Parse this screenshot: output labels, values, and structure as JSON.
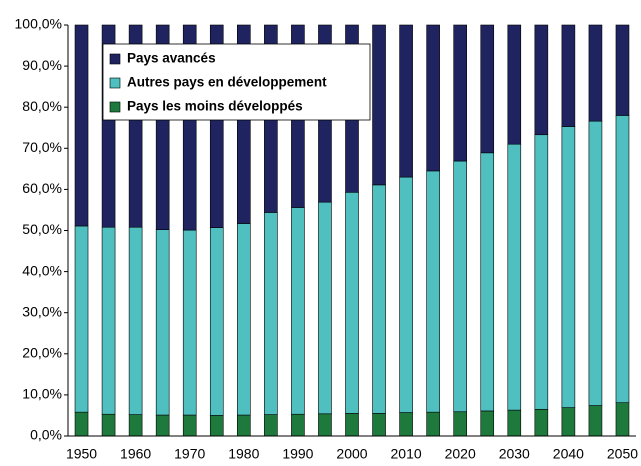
{
  "chart_data": {
    "type": "stacked_bar",
    "categories": [
      "1950",
      null,
      "1960",
      null,
      "1970",
      null,
      "1980",
      null,
      "1990",
      null,
      "2000",
      null,
      "2010",
      null,
      "2020",
      null,
      "2030",
      null,
      "2040",
      null,
      "2050"
    ],
    "series": [
      {
        "name": "Pays avancés",
        "color": "#1f2460",
        "values": [
          48.9,
          49.2,
          49.2,
          49.8,
          49.9,
          49.3,
          48.3,
          45.6,
          44.4,
          43.1,
          40.7,
          38.9,
          37.0,
          35.5,
          33.1,
          31.1,
          29.0,
          26.7,
          24.7,
          23.4,
          22.0
        ]
      },
      {
        "name": "Autres pays en développement",
        "color": "#4fbfbf",
        "values": [
          45.3,
          45.5,
          45.6,
          45.1,
          45.0,
          45.7,
          46.6,
          49.2,
          50.3,
          51.5,
          53.8,
          55.6,
          57.3,
          58.7,
          61.0,
          62.8,
          64.7,
          66.8,
          68.4,
          69.2,
          69.9
        ]
      },
      {
        "name": "Pays les moins développés",
        "color": "#1e7a3c",
        "values": [
          5.8,
          5.3,
          5.2,
          5.1,
          5.1,
          5.0,
          5.1,
          5.2,
          5.3,
          5.4,
          5.5,
          5.5,
          5.7,
          5.8,
          5.9,
          6.1,
          6.3,
          6.5,
          6.9,
          7.4,
          8.1
        ]
      }
    ],
    "ylim": [
      0,
      100
    ],
    "yticks": [
      {
        "value": 0,
        "label": "0,0%"
      },
      {
        "value": 10,
        "label": "10,0%"
      },
      {
        "value": 20,
        "label": "20,0%"
      },
      {
        "value": 30,
        "label": "30,0%"
      },
      {
        "value": 40,
        "label": "40,0%"
      },
      {
        "value": 50,
        "label": "50,0%"
      },
      {
        "value": 60,
        "label": "60,0%"
      },
      {
        "value": 70,
        "label": "70,0%"
      },
      {
        "value": 80,
        "label": "80,0%"
      },
      {
        "value": 90,
        "label": "90,0%"
      },
      {
        "value": 100,
        "label": "100,0%"
      }
    ],
    "legend": "top-left"
  }
}
